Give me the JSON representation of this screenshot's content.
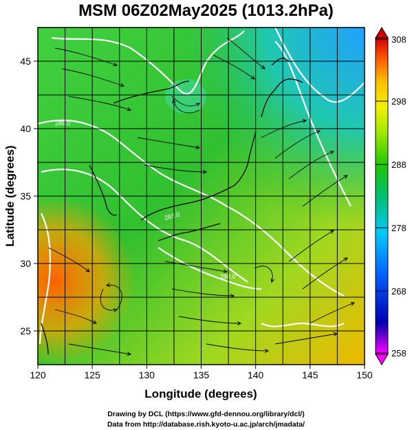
{
  "title": "MSM 06Z02May2025 (1013.2hPa)",
  "x_axis": {
    "label": "Longitude (degrees)",
    "min": 120,
    "max": 150,
    "ticks": [
      "120",
      "125",
      "130",
      "135",
      "140",
      "145",
      "150"
    ]
  },
  "y_axis": {
    "label": "Latitude  (degrees)",
    "min": 22.5,
    "max": 47.5,
    "ticks": [
      "25",
      "30",
      "35",
      "40",
      "45"
    ]
  },
  "colorbar": {
    "min": 258,
    "max": 308,
    "ticks": [
      "308",
      "298",
      "288",
      "278",
      "268",
      "258"
    ],
    "colors": [
      "#ff00ff",
      "#0000b0",
      "#0060ff",
      "#00c8ff",
      "#00e0a0",
      "#00c000",
      "#60e020",
      "#d8f000",
      "#ffd000",
      "#ff7000",
      "#d00000"
    ]
  },
  "contour_labels": [
    "283.0",
    "286.0",
    "290.0"
  ],
  "credits": {
    "line1": "Drawing by DCL (https://www.gfd-dennou.org/library/dcl/)",
    "line2": "Data from http://database.rish.kyoto-u.ac.jp/arch/jmadata/"
  }
}
